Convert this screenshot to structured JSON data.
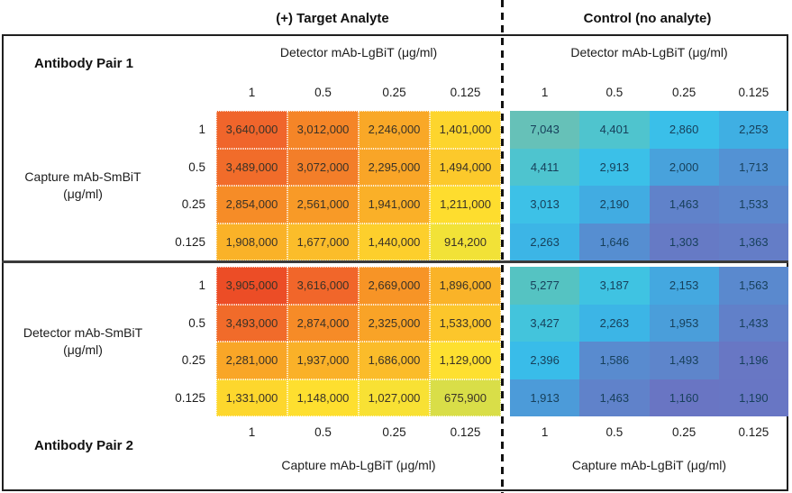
{
  "titles": {
    "target": "(+) Target Analyte",
    "control": "Control (no analyte)"
  },
  "dilutions": [
    "1",
    "0.5",
    "0.25",
    "0.125"
  ],
  "pair1": {
    "name": "Antibody Pair 1",
    "detector_header_target": "Detector mAb-LgBiT (μg/ml)",
    "detector_header_control": "Detector mAb-LgBiT (μg/ml)",
    "row_axis_line1": "Capture mAb-SmBiT",
    "row_axis_line2": "(μg/ml)",
    "target_cells": [
      [
        {
          "v": "3,640,000",
          "c": "#F0652B"
        },
        {
          "v": "3,012,000",
          "c": "#F58527"
        },
        {
          "v": "2,246,000",
          "c": "#F9A827"
        },
        {
          "v": "1,401,000",
          "c": "#FDD52D"
        }
      ],
      [
        {
          "v": "3,489,000",
          "c": "#F16C2A"
        },
        {
          "v": "3,072,000",
          "c": "#F37E29"
        },
        {
          "v": "2,295,000",
          "c": "#F9A527"
        },
        {
          "v": "1,494,000",
          "c": "#FCC92B"
        }
      ],
      [
        {
          "v": "2,854,000",
          "c": "#F68C27"
        },
        {
          "v": "2,561,000",
          "c": "#F89A27"
        },
        {
          "v": "1,941,000",
          "c": "#FAB028"
        },
        {
          "v": "1,211,000",
          "c": "#FEDD2E"
        }
      ],
      [
        {
          "v": "1,908,000",
          "c": "#FAB228"
        },
        {
          "v": "1,677,000",
          "c": "#FBBD2A"
        },
        {
          "v": "1,440,000",
          "c": "#FDCF2C"
        },
        {
          "v": "914,200",
          "c": "#F2E237"
        }
      ]
    ],
    "control_cells": [
      [
        {
          "v": "7,043",
          "c": "#66C1B8"
        },
        {
          "v": "4,401",
          "c": "#4FC4CE"
        },
        {
          "v": "2,860",
          "c": "#3ABFE9"
        },
        {
          "v": "2,253",
          "c": "#3FAFE3"
        }
      ],
      [
        {
          "v": "4,411",
          "c": "#4EC4CF"
        },
        {
          "v": "2,913",
          "c": "#3BC0E8"
        },
        {
          "v": "2,000",
          "c": "#48A2DC"
        },
        {
          "v": "1,713",
          "c": "#5392D4"
        }
      ],
      [
        {
          "v": "3,013",
          "c": "#3DC1E7"
        },
        {
          "v": "2,190",
          "c": "#41ACE2"
        },
        {
          "v": "1,463",
          "c": "#6082CA"
        },
        {
          "v": "1,533",
          "c": "#5C87CD"
        }
      ],
      [
        {
          "v": "2,263",
          "c": "#3CB5E6"
        },
        {
          "v": "1,646",
          "c": "#568ED1"
        },
        {
          "v": "1,303",
          "c": "#667AC5"
        },
        {
          "v": "1,363",
          "c": "#647DC7"
        }
      ]
    ]
  },
  "pair2": {
    "name": "Antibody Pair 2",
    "capture_header_target": "Capture mAb-LgBiT (μg/ml)",
    "capture_header_control": "Capture mAb-LgBiT (μg/ml)",
    "row_axis_line1": "Detector mAb-SmBiT",
    "row_axis_line2": "(μg/ml)",
    "target_cells": [
      [
        {
          "v": "3,905,000",
          "c": "#EC4D26"
        },
        {
          "v": "3,616,000",
          "c": "#F1662A"
        },
        {
          "v": "2,669,000",
          "c": "#F79426"
        },
        {
          "v": "1,896,000",
          "c": "#FAB328"
        }
      ],
      [
        {
          "v": "3,493,000",
          "c": "#F16B2A"
        },
        {
          "v": "2,874,000",
          "c": "#F68B27"
        },
        {
          "v": "2,325,000",
          "c": "#F9A327"
        },
        {
          "v": "1,533,000",
          "c": "#FCC62B"
        }
      ],
      [
        {
          "v": "2,281,000",
          "c": "#F9A627"
        },
        {
          "v": "1,937,000",
          "c": "#FAB128"
        },
        {
          "v": "1,686,000",
          "c": "#FBBC2A"
        },
        {
          "v": "1,129,000",
          "c": "#FEE030"
        }
      ],
      [
        {
          "v": "1,331,000",
          "c": "#FDD72D"
        },
        {
          "v": "1,148,000",
          "c": "#FEDF2F"
        },
        {
          "v": "1,027,000",
          "c": "#F8E134"
        },
        {
          "v": "675,900",
          "c": "#D9DE48"
        }
      ]
    ],
    "control_cells": [
      [
        {
          "v": "5,277",
          "c": "#55C3C2"
        },
        {
          "v": "3,187",
          "c": "#3FC3E2"
        },
        {
          "v": "2,153",
          "c": "#44A8E0"
        },
        {
          "v": "1,563",
          "c": "#5A89CE"
        }
      ],
      [
        {
          "v": "3,427",
          "c": "#43C4DC"
        },
        {
          "v": "2,263",
          "c": "#3CB5E6"
        },
        {
          "v": "1,953",
          "c": "#4A9EDA"
        },
        {
          "v": "1,433",
          "c": "#6180C9"
        }
      ],
      [
        {
          "v": "2,396",
          "c": "#39BCE9"
        },
        {
          "v": "1,586",
          "c": "#598BCF"
        },
        {
          "v": "1,493",
          "c": "#5E85CB"
        },
        {
          "v": "1,196",
          "c": "#6877C4"
        }
      ],
      [
        {
          "v": "1,913",
          "c": "#4C9BD9"
        },
        {
          "v": "1,463",
          "c": "#6082CA"
        },
        {
          "v": "1,160",
          "c": "#6975C3"
        },
        {
          "v": "1,190",
          "c": "#6876C4"
        }
      ]
    ]
  },
  "colors": {
    "target_scale_high": "#EC4D26",
    "target_scale_low": "#D9DE48",
    "control_scale_high": "#66C1B8",
    "control_scale_low": "#6975C3",
    "border": "#1f1f1f"
  },
  "chart_data": [
    {
      "type": "heatmap",
      "title": "Antibody Pair 1 — (+) Target Analyte",
      "xlabel": "Detector mAb-LgBiT (μg/ml)",
      "ylabel": "Capture mAb-SmBiT (μg/ml)",
      "x": [
        1,
        0.5,
        0.25,
        0.125
      ],
      "y": [
        1,
        0.5,
        0.25,
        0.125
      ],
      "values": [
        [
          3640000,
          3012000,
          2246000,
          1401000
        ],
        [
          3489000,
          3072000,
          2295000,
          1494000
        ],
        [
          2854000,
          2561000,
          1941000,
          1211000
        ],
        [
          1908000,
          1677000,
          1440000,
          914200
        ]
      ],
      "legend_position": "none",
      "grid": false
    },
    {
      "type": "heatmap",
      "title": "Antibody Pair 1 — Control (no analyte)",
      "xlabel": "Detector mAb-LgBiT (μg/ml)",
      "ylabel": "Capture mAb-SmBiT (μg/ml)",
      "x": [
        1,
        0.5,
        0.25,
        0.125
      ],
      "y": [
        1,
        0.5,
        0.25,
        0.125
      ],
      "values": [
        [
          7043,
          4401,
          2860,
          2253
        ],
        [
          4411,
          2913,
          2000,
          1713
        ],
        [
          3013,
          2190,
          1463,
          1533
        ],
        [
          2263,
          1646,
          1303,
          1363
        ]
      ],
      "legend_position": "none",
      "grid": false
    },
    {
      "type": "heatmap",
      "title": "Antibody Pair 2 — (+) Target Analyte",
      "xlabel": "Capture mAb-LgBiT (μg/ml)",
      "ylabel": "Detector mAb-SmBiT (μg/ml)",
      "x": [
        1,
        0.5,
        0.25,
        0.125
      ],
      "y": [
        1,
        0.5,
        0.25,
        0.125
      ],
      "values": [
        [
          3905000,
          3616000,
          2669000,
          1896000
        ],
        [
          3493000,
          2874000,
          2325000,
          1533000
        ],
        [
          2281000,
          1937000,
          1686000,
          1129000
        ],
        [
          1331000,
          1148000,
          1027000,
          675900
        ]
      ],
      "legend_position": "none",
      "grid": false
    },
    {
      "type": "heatmap",
      "title": "Antibody Pair 2 — Control (no analyte)",
      "xlabel": "Capture mAb-LgBiT (μg/ml)",
      "ylabel": "Detector mAb-SmBiT (μg/ml)",
      "x": [
        1,
        0.5,
        0.25,
        0.125
      ],
      "y": [
        1,
        0.5,
        0.25,
        0.125
      ],
      "values": [
        [
          5277,
          3187,
          2153,
          1563
        ],
        [
          3427,
          2263,
          1953,
          1433
        ],
        [
          2396,
          1586,
          1493,
          1196
        ],
        [
          1913,
          1463,
          1160,
          1190
        ]
      ],
      "legend_position": "none",
      "grid": false
    }
  ]
}
